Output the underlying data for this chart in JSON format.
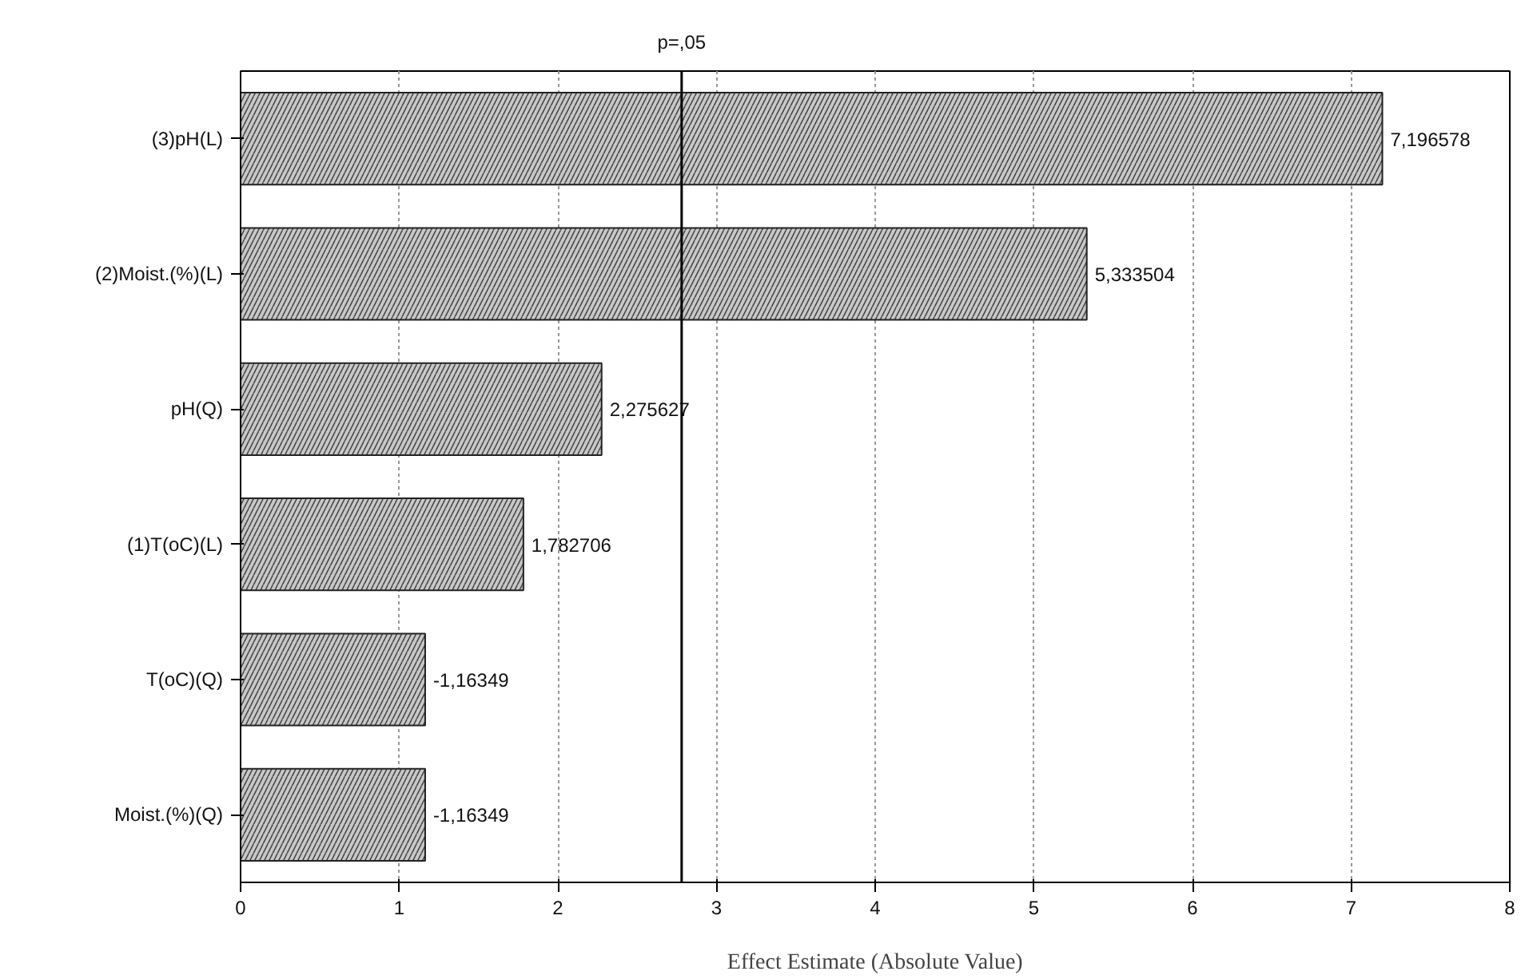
{
  "chart_data": {
    "type": "bar",
    "orientation": "horizontal",
    "categories": [
      "(3)pH(L)",
      "(2)Moist.(%)(L)",
      "pH(Q)",
      "(1)T(oC)(L)",
      "T(oC)(Q)",
      "Moist.(%)(Q)"
    ],
    "values": [
      7.196578,
      5.333504,
      2.275627,
      1.782706,
      1.16349,
      1.16349
    ],
    "value_labels": [
      "7,196578",
      "5,333504",
      "2,275627",
      "1,782706",
      "-1,16349",
      "-1,16349"
    ],
    "color": "#c8c8c8",
    "xlabel": "Effect Estimate (Absolute Value)",
    "xlim": [
      0,
      8
    ],
    "xticks": [
      0,
      1,
      2,
      3,
      4,
      5,
      6,
      7,
      8
    ],
    "grid": "x",
    "ref_lines": [
      {
        "axis": "x",
        "value": 2.78,
        "label": "p=,05",
        "color": "#000000"
      }
    ]
  }
}
